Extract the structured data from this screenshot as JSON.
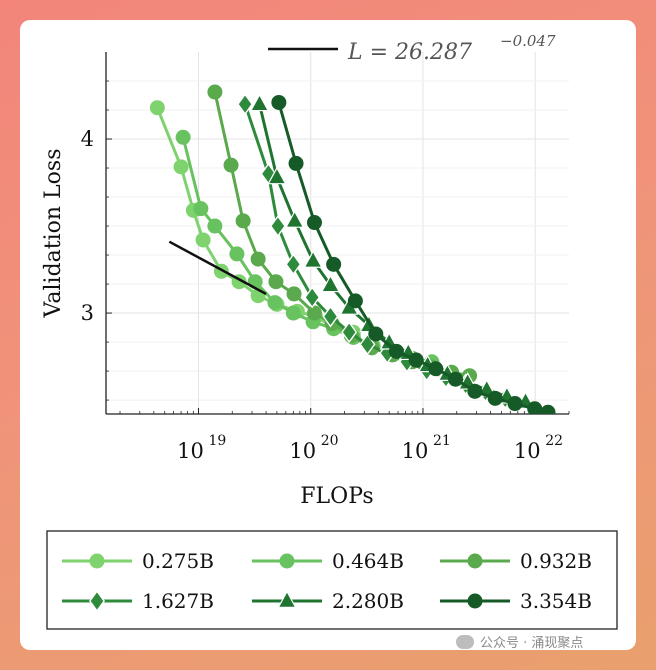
{
  "chart_data": {
    "type": "line",
    "xlabel": "FLOPs",
    "ylabel": "Validation Loss",
    "x_scale": "log",
    "xlim": [
      1.5e+18,
      2e+22
    ],
    "ylim": [
      2.42,
      4.5
    ],
    "x_ticks": [
      {
        "value": 1e+19,
        "base": "10",
        "exp": "19"
      },
      {
        "value": 1e+20,
        "base": "10",
        "exp": "20"
      },
      {
        "value": 1e+21,
        "base": "10",
        "exp": "21"
      },
      {
        "value": 1e+22,
        "base": "10",
        "exp": "22"
      }
    ],
    "y_ticks": [
      {
        "value": 3,
        "label": "3"
      },
      {
        "value": 4,
        "label": "4"
      }
    ],
    "fit_line": {
      "label_main": "L = 26.287",
      "label_exp": "−0.047",
      "color": "#111111",
      "x": [
        5.5e+18,
        4e+19
      ],
      "y": [
        3.41,
        3.11
      ]
    },
    "series": [
      {
        "name": "0.275B",
        "marker": "circle",
        "color": "#7ed36e",
        "x": [
          4.3e+18,
          7e+18,
          9e+18,
          1.1e+19,
          1.6e+19,
          2.3e+19,
          3.4e+19,
          5e+19,
          7.6e+19,
          1.1e+20,
          1.6e+20,
          2.4e+20
        ],
        "y": [
          4.18,
          3.84,
          3.59,
          3.42,
          3.24,
          3.18,
          3.1,
          3.05,
          3.01,
          2.98,
          2.92,
          2.89
        ]
      },
      {
        "name": "0.464B",
        "marker": "circle",
        "color": "#69c260",
        "x": [
          7.3e+18,
          1.05e+19,
          1.4e+19,
          2.2e+19,
          3.2e+19,
          4.8e+19,
          7e+19,
          1.05e+20,
          1.6e+20,
          2.4e+20,
          3.6e+20,
          5.4e+20,
          8e+20,
          1.2e+21
        ],
        "y": [
          4.01,
          3.6,
          3.5,
          3.34,
          3.18,
          3.06,
          3.0,
          2.95,
          2.91,
          2.86,
          2.81,
          2.76,
          2.74,
          2.72
        ]
      },
      {
        "name": "0.932B",
        "marker": "circle",
        "color": "#5aa94c",
        "x": [
          1.4e+19,
          1.95e+19,
          2.5e+19,
          3.4e+19,
          4.9e+19,
          7.1e+19,
          1.08e+20,
          1.55e+20,
          2.3e+20,
          3.5e+20,
          5.3e+20,
          8e+20,
          1.2e+21,
          1.8e+21,
          2.6e+21
        ],
        "y": [
          4.27,
          3.85,
          3.53,
          3.31,
          3.18,
          3.11,
          3.0,
          2.94,
          2.87,
          2.8,
          2.76,
          2.72,
          2.69,
          2.66,
          2.64
        ]
      },
      {
        "name": "1.627B",
        "marker": "diamond",
        "color": "#2e8b3c",
        "x": [
          2.6e+19,
          4.2e+19,
          5.1e+19,
          7e+19,
          1.03e+20,
          1.5e+20,
          2.2e+20,
          3.2e+20,
          4.8e+20,
          7.2e+20,
          1.08e+21,
          1.6e+21,
          2.4e+21,
          3.6e+21,
          5.4e+21
        ],
        "y": [
          4.2,
          3.8,
          3.5,
          3.28,
          3.09,
          2.98,
          2.89,
          2.82,
          2.77,
          2.72,
          2.67,
          2.63,
          2.59,
          2.55,
          2.51
        ]
      },
      {
        "name": "2.280B",
        "marker": "triangle",
        "color": "#1f7430",
        "x": [
          3.5e+19,
          5e+19,
          7.2e+19,
          1.05e+20,
          1.5e+20,
          2.2e+20,
          3.3e+20,
          5e+20,
          7.4e+20,
          1.1e+21,
          1.65e+21,
          2.5e+21,
          3.7e+21,
          5.6e+21,
          8.2e+21
        ],
        "y": [
          4.2,
          3.78,
          3.53,
          3.3,
          3.16,
          3.03,
          2.93,
          2.83,
          2.77,
          2.7,
          2.65,
          2.6,
          2.56,
          2.52,
          2.49
        ]
      },
      {
        "name": "3.354B",
        "marker": "circle",
        "color": "#155a27",
        "x": [
          5.2e+19,
          7.4e+19,
          1.08e+20,
          1.6e+20,
          2.5e+20,
          3.8e+20,
          5.8e+20,
          8.7e+20,
          1.3e+21,
          1.95e+21,
          2.9e+21,
          4.4e+21,
          6.6e+21,
          9.9e+21,
          1.3e+22
        ],
        "y": [
          4.21,
          3.86,
          3.52,
          3.28,
          3.07,
          2.88,
          2.78,
          2.73,
          2.68,
          2.62,
          2.55,
          2.51,
          2.48,
          2.45,
          2.43
        ]
      }
    ]
  },
  "watermark": {
    "text": "公众号 · 涌现聚点"
  }
}
